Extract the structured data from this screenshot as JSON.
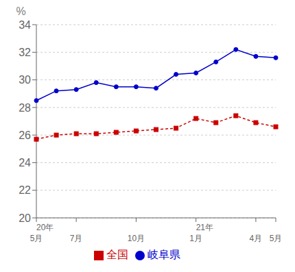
{
  "chart_data": {
    "type": "line",
    "ylabel": "%",
    "categories": [
      "5月",
      null,
      "7月",
      null,
      null,
      "10月",
      null,
      null,
      "1月",
      null,
      null,
      "4月",
      "5月"
    ],
    "annotations": [
      {
        "text": "20年",
        "x": 0
      },
      {
        "text": "21年",
        "x": 8
      }
    ],
    "series": [
      {
        "name": "岐阜県",
        "color": "#0000CC",
        "marker": "circle",
        "line_style": "solid",
        "values": [
          28.5,
          29.2,
          29.3,
          29.8,
          29.5,
          29.5,
          29.4,
          30.4,
          30.5,
          31.3,
          32.2,
          31.7,
          31.6
        ]
      },
      {
        "name": "全国",
        "color": "#CC0000",
        "marker": "square",
        "line_style": "dashed",
        "values": [
          25.7,
          26.0,
          26.1,
          26.1,
          26.2,
          26.3,
          26.4,
          26.5,
          27.2,
          26.9,
          27.4,
          26.9,
          26.6
        ]
      }
    ],
    "ylim": [
      20,
      34
    ],
    "yticks": [
      20,
      22,
      24,
      26,
      28,
      30,
      32,
      34
    ],
    "grid": true,
    "legend": "bottom"
  }
}
